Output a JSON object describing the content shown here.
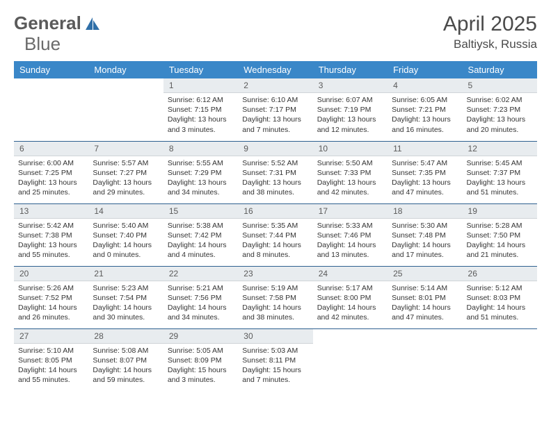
{
  "logo": {
    "part1": "General",
    "part2": "Blue"
  },
  "title": "April 2025",
  "location": "Baltiysk, Russia",
  "colors": {
    "header_bg": "#3a87c8",
    "header_text": "#ffffff",
    "daynum_bg": "#e8ecef",
    "row_border": "#2d5f8f",
    "logo_accent": "#2f6fa8"
  },
  "weekdays": [
    "Sunday",
    "Monday",
    "Tuesday",
    "Wednesday",
    "Thursday",
    "Friday",
    "Saturday"
  ],
  "weeks": [
    [
      null,
      null,
      {
        "n": "1",
        "sr": "6:12 AM",
        "ss": "7:15 PM",
        "dh": "13",
        "dm": "3"
      },
      {
        "n": "2",
        "sr": "6:10 AM",
        "ss": "7:17 PM",
        "dh": "13",
        "dm": "7"
      },
      {
        "n": "3",
        "sr": "6:07 AM",
        "ss": "7:19 PM",
        "dh": "13",
        "dm": "12"
      },
      {
        "n": "4",
        "sr": "6:05 AM",
        "ss": "7:21 PM",
        "dh": "13",
        "dm": "16"
      },
      {
        "n": "5",
        "sr": "6:02 AM",
        "ss": "7:23 PM",
        "dh": "13",
        "dm": "20"
      }
    ],
    [
      {
        "n": "6",
        "sr": "6:00 AM",
        "ss": "7:25 PM",
        "dh": "13",
        "dm": "25"
      },
      {
        "n": "7",
        "sr": "5:57 AM",
        "ss": "7:27 PM",
        "dh": "13",
        "dm": "29"
      },
      {
        "n": "8",
        "sr": "5:55 AM",
        "ss": "7:29 PM",
        "dh": "13",
        "dm": "34"
      },
      {
        "n": "9",
        "sr": "5:52 AM",
        "ss": "7:31 PM",
        "dh": "13",
        "dm": "38"
      },
      {
        "n": "10",
        "sr": "5:50 AM",
        "ss": "7:33 PM",
        "dh": "13",
        "dm": "42"
      },
      {
        "n": "11",
        "sr": "5:47 AM",
        "ss": "7:35 PM",
        "dh": "13",
        "dm": "47"
      },
      {
        "n": "12",
        "sr": "5:45 AM",
        "ss": "7:37 PM",
        "dh": "13",
        "dm": "51"
      }
    ],
    [
      {
        "n": "13",
        "sr": "5:42 AM",
        "ss": "7:38 PM",
        "dh": "13",
        "dm": "55"
      },
      {
        "n": "14",
        "sr": "5:40 AM",
        "ss": "7:40 PM",
        "dh": "14",
        "dm": "0"
      },
      {
        "n": "15",
        "sr": "5:38 AM",
        "ss": "7:42 PM",
        "dh": "14",
        "dm": "4"
      },
      {
        "n": "16",
        "sr": "5:35 AM",
        "ss": "7:44 PM",
        "dh": "14",
        "dm": "8"
      },
      {
        "n": "17",
        "sr": "5:33 AM",
        "ss": "7:46 PM",
        "dh": "14",
        "dm": "13"
      },
      {
        "n": "18",
        "sr": "5:30 AM",
        "ss": "7:48 PM",
        "dh": "14",
        "dm": "17"
      },
      {
        "n": "19",
        "sr": "5:28 AM",
        "ss": "7:50 PM",
        "dh": "14",
        "dm": "21"
      }
    ],
    [
      {
        "n": "20",
        "sr": "5:26 AM",
        "ss": "7:52 PM",
        "dh": "14",
        "dm": "26"
      },
      {
        "n": "21",
        "sr": "5:23 AM",
        "ss": "7:54 PM",
        "dh": "14",
        "dm": "30"
      },
      {
        "n": "22",
        "sr": "5:21 AM",
        "ss": "7:56 PM",
        "dh": "14",
        "dm": "34"
      },
      {
        "n": "23",
        "sr": "5:19 AM",
        "ss": "7:58 PM",
        "dh": "14",
        "dm": "38"
      },
      {
        "n": "24",
        "sr": "5:17 AM",
        "ss": "8:00 PM",
        "dh": "14",
        "dm": "42"
      },
      {
        "n": "25",
        "sr": "5:14 AM",
        "ss": "8:01 PM",
        "dh": "14",
        "dm": "47"
      },
      {
        "n": "26",
        "sr": "5:12 AM",
        "ss": "8:03 PM",
        "dh": "14",
        "dm": "51"
      }
    ],
    [
      {
        "n": "27",
        "sr": "5:10 AM",
        "ss": "8:05 PM",
        "dh": "14",
        "dm": "55"
      },
      {
        "n": "28",
        "sr": "5:08 AM",
        "ss": "8:07 PM",
        "dh": "14",
        "dm": "59"
      },
      {
        "n": "29",
        "sr": "5:05 AM",
        "ss": "8:09 PM",
        "dh": "15",
        "dm": "3"
      },
      {
        "n": "30",
        "sr": "5:03 AM",
        "ss": "8:11 PM",
        "dh": "15",
        "dm": "7"
      },
      null,
      null,
      null
    ]
  ],
  "labels": {
    "sunrise": "Sunrise: ",
    "sunset": "Sunset: ",
    "daylight": "Daylight: ",
    "hours": " hours",
    "and": "and ",
    "minutes": " minutes."
  }
}
